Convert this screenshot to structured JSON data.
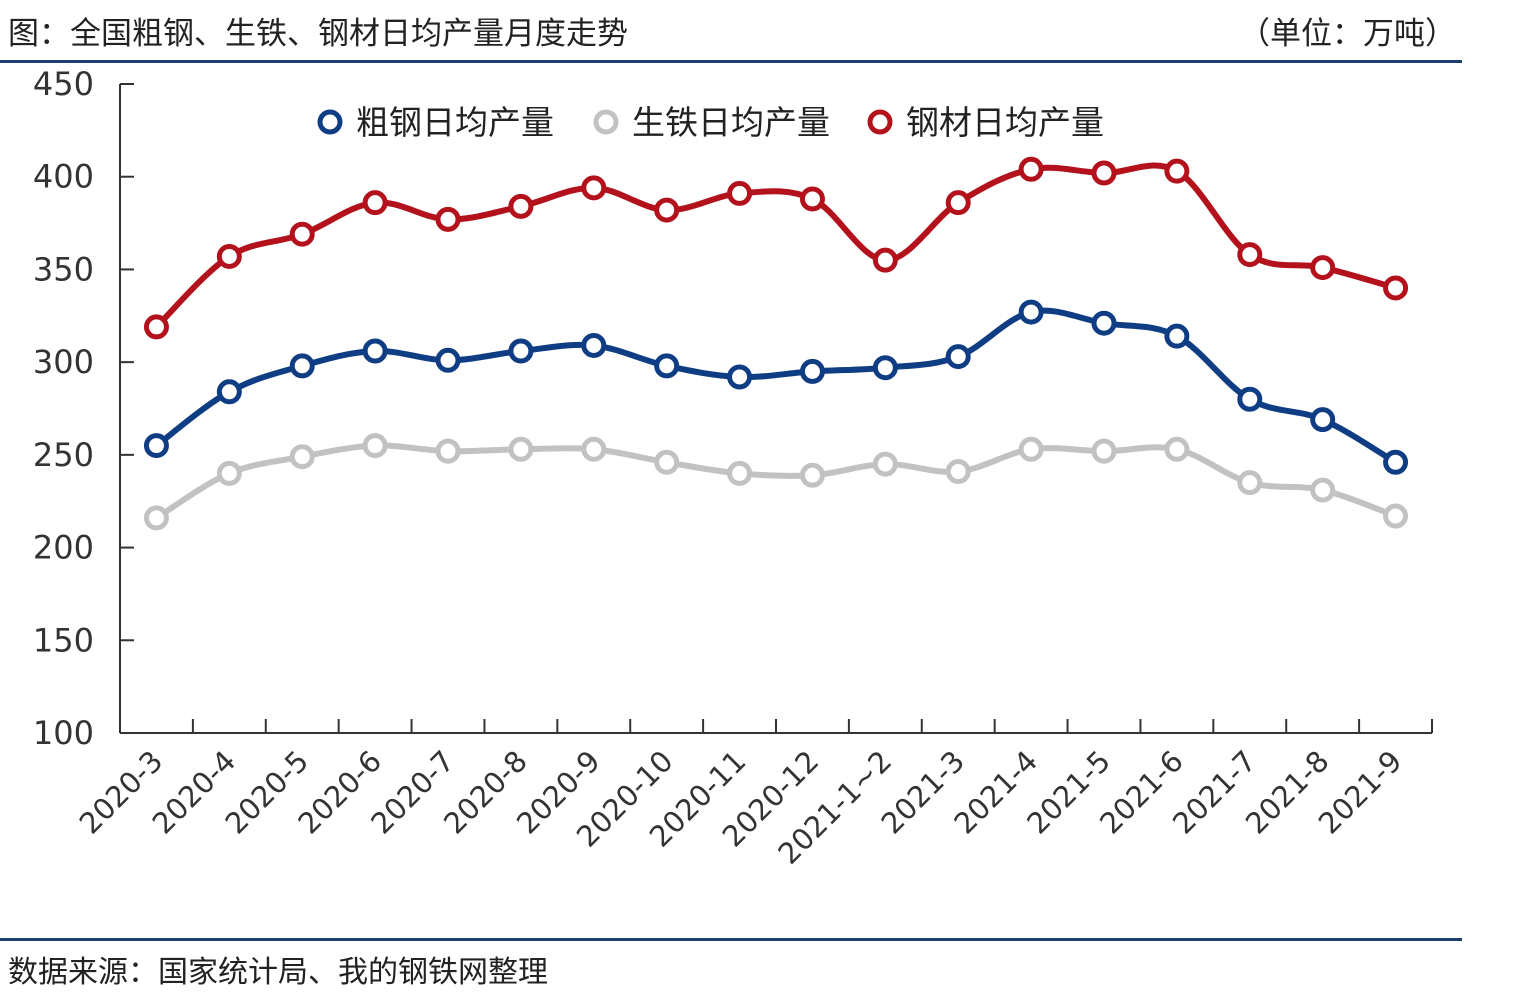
{
  "header": {
    "title": "图：全国粗钢、生铁、钢材日均产量月度走势",
    "unit": "（单位：万吨）"
  },
  "footer": {
    "source": "数据来源：国家统计局、我的钢铁网整理"
  },
  "chart_data": {
    "type": "line",
    "categories": [
      "2020-3",
      "2020-4",
      "2020-5",
      "2020-6",
      "2020-7",
      "2020-8",
      "2020-9",
      "2020-10",
      "2020-11",
      "2020-12",
      "2021-1~2",
      "2021-3",
      "2021-4",
      "2021-5",
      "2021-6",
      "2021-7",
      "2021-8",
      "2021-9"
    ],
    "ylim": [
      100,
      450
    ],
    "yticks": [
      100,
      150,
      200,
      250,
      300,
      350,
      400,
      450
    ],
    "grid": false,
    "legend_position": "top-center",
    "series": [
      {
        "name": "粗钢日均产量",
        "color": "#0f3d84",
        "values": [
          255,
          284,
          298,
          306,
          301,
          306,
          309,
          298,
          292,
          295,
          297,
          303,
          327,
          321,
          314,
          280,
          269,
          246
        ]
      },
      {
        "name": "生铁日均产量",
        "color": "#c2c2c2",
        "values": [
          216,
          240,
          249,
          255,
          252,
          253,
          253,
          246,
          240,
          239,
          245,
          241,
          253,
          252,
          253,
          235,
          231,
          217
        ]
      },
      {
        "name": "钢材日均产量",
        "color": "#b3121c",
        "values": [
          319,
          357,
          369,
          386,
          377,
          384,
          394,
          382,
          391,
          388,
          355,
          386,
          404,
          402,
          403,
          358,
          351,
          340
        ]
      }
    ]
  }
}
